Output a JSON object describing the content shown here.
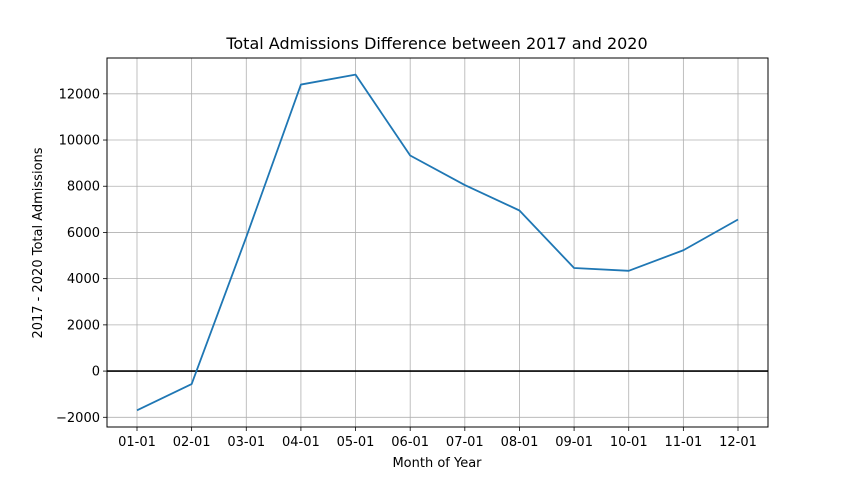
{
  "chart_data": {
    "type": "line",
    "title": "Total Admissions Difference between 2017 and 2020",
    "xlabel": "Month of Year",
    "ylabel": "2017 - 2020 Total Admissions",
    "categories": [
      "01-01",
      "02-01",
      "03-01",
      "04-01",
      "05-01",
      "06-01",
      "07-01",
      "08-01",
      "09-01",
      "10-01",
      "11-01",
      "12-01"
    ],
    "series": [
      {
        "values": [
          -1700,
          -560,
          5800,
          12400,
          12830,
          9330,
          8050,
          6950,
          4460,
          4340,
          5230,
          6560
        ],
        "color": "#1f77b4"
      }
    ],
    "yticks": [
      -2000,
      0,
      2000,
      4000,
      6000,
      8000,
      10000,
      12000
    ],
    "ylim": [
      -2420,
      13550
    ],
    "grid": true,
    "zero_line": {
      "value": 0,
      "color": "#000000"
    }
  }
}
